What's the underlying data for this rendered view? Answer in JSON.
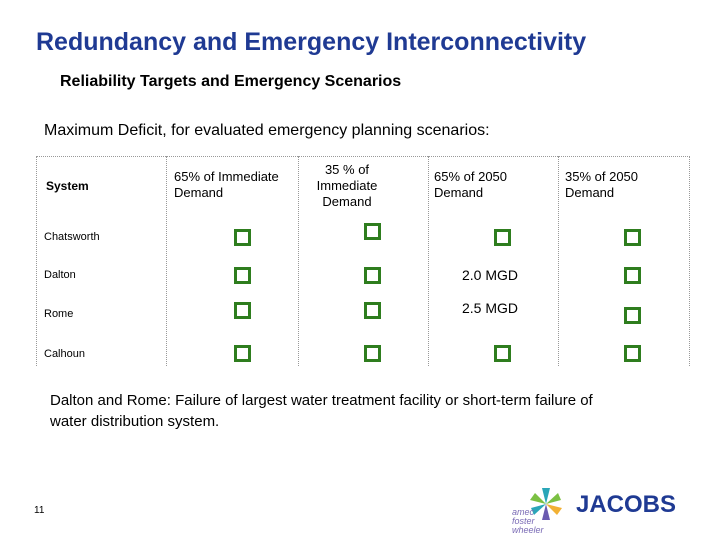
{
  "title": "Redundancy and Emergency Interconnectivity",
  "subtitle": "Reliability Targets and Emergency Scenarios",
  "intro": "Maximum Deficit, for evaluated emergency planning scenarios:",
  "table": {
    "headers": {
      "system": "System",
      "col1": "65% of Immediate Demand",
      "col2": "35 % of Immediate Demand",
      "col3": "65% of 2050 Demand",
      "col4": "35% of 2050 Demand"
    },
    "rows": [
      {
        "label": "Chatsworth",
        "cells": [
          "check",
          "check",
          "check",
          "check"
        ]
      },
      {
        "label": "Dalton",
        "cells": [
          "check",
          "check",
          "2.0 MGD",
          "check"
        ]
      },
      {
        "label": "Rome",
        "cells": [
          "check",
          "check",
          "2.5 MGD",
          "check"
        ]
      },
      {
        "label": "Calhoun",
        "cells": [
          "check",
          "check",
          "check",
          "check"
        ]
      }
    ],
    "check_icon": "checkbox-icon",
    "check_color": "#2e7d1e"
  },
  "note": "Dalton and Rome: Failure of largest water treatment facility or short-term failure of water distribution system.",
  "page_number": "11",
  "logos": {
    "amec_text_1": "amec",
    "amec_text_2": "foster",
    "amec_text_3": "wheeler",
    "jacobs": "JACOBS"
  },
  "colors": {
    "title": "#1f3a93",
    "jacobs": "#1f3a93"
  }
}
